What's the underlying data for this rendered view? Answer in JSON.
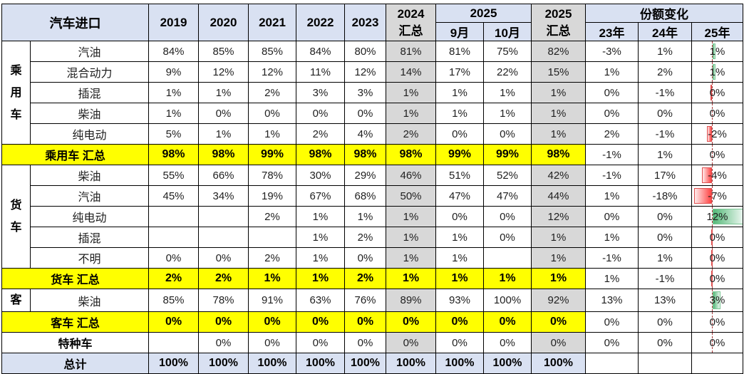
{
  "header": {
    "title": "汽车进口",
    "years": [
      "2019",
      "2020",
      "2021",
      "2022",
      "2023"
    ],
    "total2024": [
      "2024",
      "汇总"
    ],
    "group2025": "2025",
    "months": [
      "9月",
      "10月"
    ],
    "total2025": [
      "2025",
      "汇总"
    ],
    "share_title": "份额变化",
    "share_years": [
      "23年",
      "24年",
      "25年"
    ]
  },
  "colors": {
    "header_blue": "#D9E1F2",
    "summary_yellow": "#FFFF00",
    "aggregate_gray": "#D8D8D8",
    "bar_positive_green": "#54B878",
    "bar_negative_red": "#FF4444"
  },
  "columns_order": [
    "2019",
    "2020",
    "2021",
    "2022",
    "2023",
    "2024汇总",
    "2025-9月",
    "2025-10月",
    "2025汇总",
    "份额变化23年",
    "份额变化24年",
    "份额变化25年"
  ],
  "rows": [
    {
      "group": "乘用车",
      "group_span": 5,
      "label": "汽油",
      "values": [
        "84%",
        "85%",
        "85%",
        "84%",
        "80%",
        "81%",
        "81%",
        "75%",
        "82%",
        "-3%",
        "1%",
        "1%"
      ],
      "bar": 1,
      "axis": true
    },
    {
      "label": "混合动力",
      "values": [
        "9%",
        "12%",
        "12%",
        "11%",
        "12%",
        "14%",
        "17%",
        "22%",
        "15%",
        "1%",
        "2%",
        "1%"
      ],
      "bar": 1,
      "axis": true
    },
    {
      "label": "插混",
      "values": [
        "1%",
        "1%",
        "2%",
        "3%",
        "3%",
        "1%",
        "1%",
        "1%",
        "1%",
        "0%",
        "-1%",
        "0%"
      ],
      "bar": -0.5,
      "axis": true
    },
    {
      "label": "柴油",
      "values": [
        "1%",
        "0%",
        "0%",
        "0%",
        "0%",
        "1%",
        "1%",
        "1%",
        "1%",
        "0%",
        "0%",
        "0%"
      ],
      "bar": null,
      "axis": true
    },
    {
      "label": "纯电动",
      "values": [
        "5%",
        "1%",
        "1%",
        "2%",
        "4%",
        "2%",
        "0%",
        "0%",
        "1%",
        "2%",
        "-1%",
        "-2%"
      ],
      "bar": -2,
      "axis": true
    },
    {
      "kind": "summary",
      "label": "乘用车 汇总",
      "values": [
        "98%",
        "98%",
        "99%",
        "98%",
        "98%",
        "98%",
        "99%",
        "99%",
        "98%",
        "-1%",
        "1%",
        "0%"
      ],
      "bar": null,
      "axis": true
    },
    {
      "group": "货车",
      "group_span": 5,
      "label": "柴油",
      "values": [
        "55%",
        "66%",
        "78%",
        "30%",
        "29%",
        "46%",
        "51%",
        "52%",
        "42%",
        "-1%",
        "17%",
        "-4%"
      ],
      "bar": -4,
      "axis": true
    },
    {
      "label": "汽油",
      "values": [
        "45%",
        "34%",
        "19%",
        "67%",
        "68%",
        "50%",
        "47%",
        "47%",
        "44%",
        "1%",
        "-18%",
        "-7%"
      ],
      "bar": -7,
      "axis": true
    },
    {
      "label": "纯电动",
      "values": [
        "",
        "",
        "2%",
        "1%",
        "1%",
        "1%",
        "0%",
        "0%",
        "12%",
        "0%",
        "0%",
        "12%"
      ],
      "bar": 12,
      "axis": true
    },
    {
      "label": "插混",
      "values": [
        "",
        "",
        "",
        "1%",
        "2%",
        "1%",
        "1%",
        "0%",
        "1%",
        "1%",
        "0%",
        "0%"
      ],
      "bar": -0.3,
      "axis": true
    },
    {
      "label": "不明",
      "values": [
        "0%",
        "0%",
        "2%",
        "1%",
        "0%",
        "1%",
        "1%",
        "",
        "1%",
        "-1%",
        "1%",
        "0%"
      ],
      "bar": -0.3,
      "axis": true
    },
    {
      "kind": "summary",
      "label": "货车 汇总",
      "values": [
        "2%",
        "2%",
        "1%",
        "1%",
        "2%",
        "1%",
        "1%",
        "1%",
        "1%",
        "1%",
        "-1%",
        "0%"
      ],
      "bar": -0.3,
      "axis": true
    },
    {
      "group": "客",
      "group_span": 1,
      "label": "柴油",
      "values": [
        "85%",
        "78%",
        "91%",
        "63%",
        "76%",
        "89%",
        "93%",
        "100%",
        "92%",
        "13%",
        "13%",
        "3%"
      ],
      "bar": 3,
      "axis": true
    },
    {
      "kind": "summary",
      "label": "客车 汇总",
      "values": [
        "0%",
        "0%",
        "0%",
        "0%",
        "0%",
        "0%",
        "0%",
        "0%",
        "0%",
        "0%",
        "0%",
        "0%"
      ],
      "bar": null,
      "axis": true
    },
    {
      "kind": "special",
      "label": "特种车",
      "values": [
        "",
        "0%",
        "0%",
        "0%",
        "0%",
        "0%",
        "0%",
        "0%",
        "0%",
        "0%",
        "0%",
        "0%"
      ],
      "bar": null,
      "axis": true
    },
    {
      "kind": "total",
      "label": "总计",
      "values": [
        "100%",
        "100%",
        "100%",
        "100%",
        "100%",
        "100%",
        "100%",
        "100%",
        "100%",
        "",
        "",
        ""
      ],
      "bar": null,
      "axis": false
    }
  ]
}
